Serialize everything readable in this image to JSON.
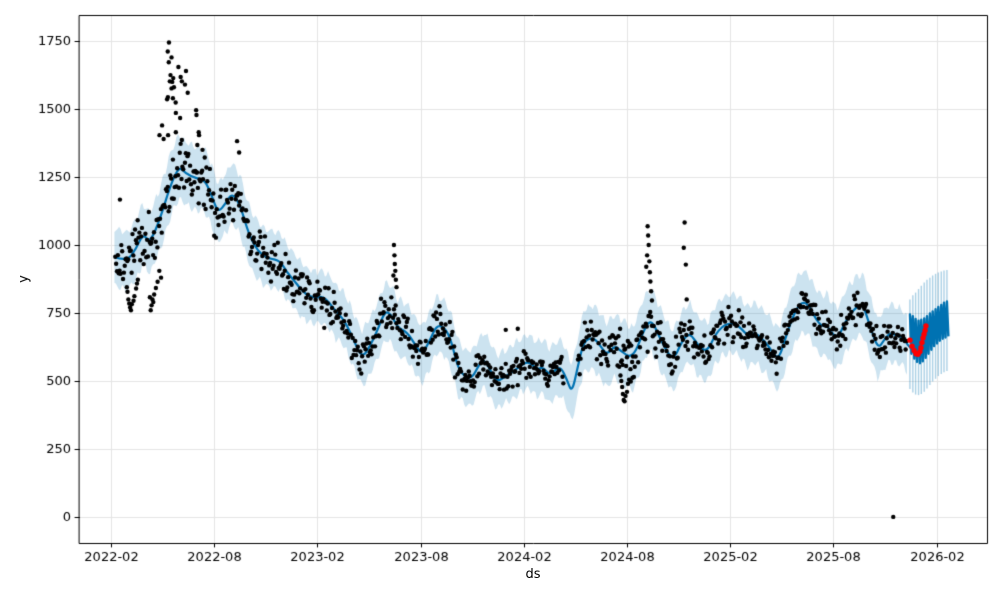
{
  "chart_data": {
    "type": "line",
    "components": [
      "scatter-actuals",
      "forecast-line",
      "uncertainty-band",
      "future-interval-whiskers",
      "recent-actuals-red"
    ],
    "title": "",
    "xlabel": "ds",
    "ylabel": "y",
    "grid": true,
    "legend": "none",
    "x_ticks": [
      {
        "label": "2022-02",
        "month": 0
      },
      {
        "label": "2022-08",
        "month": 6
      },
      {
        "label": "2023-02",
        "month": 12
      },
      {
        "label": "2023-08",
        "month": 18
      },
      {
        "label": "2024-02",
        "month": 24
      },
      {
        "label": "2024-08",
        "month": 30
      },
      {
        "label": "2025-02",
        "month": 36
      },
      {
        "label": "2025-08",
        "month": 42
      },
      {
        "label": "2026-02",
        "month": 48
      }
    ],
    "y_ticks": [
      0,
      250,
      500,
      750,
      1000,
      1250,
      1500,
      1750
    ],
    "x_range_months": [
      -1.86,
      50.93
    ],
    "y_range": [
      -96,
      1846
    ],
    "colors": {
      "line": "#0072b2",
      "band": "rgba(0,114,178,0.2)",
      "whisker": "rgba(0,114,178,0.33)",
      "dots": "#000000",
      "recent_dots": "#ff0000",
      "grid": "#e5e5e5",
      "spine": "#000000",
      "text": "#000000"
    },
    "seed": 7,
    "trend": [
      [
        0.23,
        955
      ],
      [
        0.93,
        940
      ],
      [
        1.45,
        985
      ],
      [
        1.86,
        1042
      ],
      [
        2.27,
        1008
      ],
      [
        2.85,
        1095
      ],
      [
        3.43,
        1215
      ],
      [
        3.95,
        1290
      ],
      [
        4.36,
        1262
      ],
      [
        4.94,
        1246
      ],
      [
        5.47,
        1238
      ],
      [
        5.87,
        1180
      ],
      [
        6.22,
        1118
      ],
      [
        6.69,
        1155
      ],
      [
        7.03,
        1192
      ],
      [
        7.5,
        1150
      ],
      [
        7.91,
        1060
      ],
      [
        8.31,
        1000
      ],
      [
        8.78,
        962
      ],
      [
        9.24,
        950
      ],
      [
        9.83,
        942
      ],
      [
        10.23,
        900
      ],
      [
        10.7,
        865
      ],
      [
        11.16,
        828
      ],
      [
        11.57,
        810
      ],
      [
        11.98,
        806
      ],
      [
        12.27,
        812
      ],
      [
        12.67,
        790
      ],
      [
        13.08,
        755
      ],
      [
        13.55,
        725
      ],
      [
        14.01,
        665
      ],
      [
        14.59,
        582
      ],
      [
        15.06,
        628
      ],
      [
        15.52,
        690
      ],
      [
        15.93,
        757
      ],
      [
        16.28,
        745
      ],
      [
        16.69,
        695
      ],
      [
        17.21,
        680
      ],
      [
        17.67,
        635
      ],
      [
        18.08,
        596
      ],
      [
        18.55,
        650
      ],
      [
        18.94,
        706
      ],
      [
        19.42,
        695
      ],
      [
        19.77,
        651
      ],
      [
        20.17,
        548
      ],
      [
        20.58,
        515
      ],
      [
        20.99,
        510
      ],
      [
        21.4,
        560
      ],
      [
        21.69,
        580
      ],
      [
        22.09,
        535
      ],
      [
        22.44,
        498
      ],
      [
        22.91,
        515
      ],
      [
        23.37,
        535
      ],
      [
        23.9,
        560
      ],
      [
        24.3,
        572
      ],
      [
        24.77,
        542
      ],
      [
        25.12,
        552
      ],
      [
        25.47,
        522
      ],
      [
        25.93,
        545
      ],
      [
        26.16,
        550
      ],
      [
        26.51,
        505
      ],
      [
        26.8,
        455
      ],
      [
        27.15,
        555
      ],
      [
        27.5,
        650
      ],
      [
        28.08,
        660
      ],
      [
        28.49,
        625
      ],
      [
        28.84,
        596
      ],
      [
        29.3,
        630
      ],
      [
        29.59,
        612
      ],
      [
        30.35,
        580
      ],
      [
        31.05,
        700
      ],
      [
        31.45,
        725
      ],
      [
        31.92,
        655
      ],
      [
        32.67,
        570
      ],
      [
        33.2,
        648
      ],
      [
        33.66,
        678
      ],
      [
        34.13,
        630
      ],
      [
        34.65,
        606
      ],
      [
        35.12,
        668
      ],
      [
        35.52,
        700
      ],
      [
        35.87,
        710
      ],
      [
        36.28,
        712
      ],
      [
        36.69,
        690
      ],
      [
        37.04,
        664
      ],
      [
        37.44,
        678
      ],
      [
        37.85,
        655
      ],
      [
        38.2,
        632
      ],
      [
        38.55,
        595
      ],
      [
        38.84,
        585
      ],
      [
        39.13,
        640
      ],
      [
        39.48,
        710
      ],
      [
        39.88,
        768
      ],
      [
        40.17,
        790
      ],
      [
        40.52,
        783
      ],
      [
        40.87,
        740
      ],
      [
        41.16,
        712
      ],
      [
        41.4,
        700
      ],
      [
        41.57,
        712
      ],
      [
        41.86,
        678
      ],
      [
        42.27,
        658
      ],
      [
        42.67,
        715
      ],
      [
        43.08,
        755
      ],
      [
        43.43,
        775
      ],
      [
        43.72,
        782
      ],
      [
        44.13,
        700
      ],
      [
        44.59,
        618
      ],
      [
        44.94,
        650
      ],
      [
        45.29,
        678
      ],
      [
        45.64,
        668
      ],
      [
        46.05,
        660
      ],
      [
        46.34,
        630
      ],
      [
        46.63,
        612
      ]
    ],
    "band_delta": [
      [
        0.2,
        105
      ],
      [
        4,
        116
      ],
      [
        8,
        106
      ],
      [
        12,
        96
      ],
      [
        16,
        104
      ],
      [
        20,
        102
      ],
      [
        24,
        96
      ],
      [
        27,
        105
      ],
      [
        28,
        118
      ],
      [
        31.5,
        114
      ],
      [
        35,
        105
      ],
      [
        38,
        112
      ],
      [
        40,
        112
      ],
      [
        43.5,
        112
      ],
      [
        46.3,
        100
      ]
    ],
    "band_wiggle": {
      "amp": 12,
      "period": 0.42,
      "jitter": 6,
      "step": 0.09,
      "t_start": 0.2,
      "t_end": 46.3
    },
    "scatter": {
      "t_start": 0.25,
      "t_end": 46.28,
      "step": 0.05,
      "dot_radius": 2.2,
      "noise_segments": [
        [
          0,
          3,
          46
        ],
        [
          3,
          6,
          58
        ],
        [
          6,
          9.5,
          50
        ],
        [
          9.5,
          13,
          40
        ],
        [
          13,
          18,
          36
        ],
        [
          18,
          26,
          28
        ],
        [
          26,
          29,
          32
        ],
        [
          29,
          34,
          36
        ],
        [
          34,
          40,
          30
        ],
        [
          40,
          46.3,
          27
        ]
      ],
      "gaps": [
        [
          26.32,
          27.12
        ]
      ]
    },
    "outliers": [
      [
        3.37,
        1745
      ],
      [
        3.3,
        1712
      ],
      [
        3.52,
        1690
      ],
      [
        3.36,
        1672
      ],
      [
        3.92,
        1655
      ],
      [
        3.46,
        1625
      ],
      [
        3.62,
        1614
      ],
      [
        3.56,
        1600
      ],
      [
        3.42,
        1602
      ],
      [
        3.66,
        1580
      ],
      [
        3.52,
        1576
      ],
      [
        4.05,
        1618
      ],
      [
        4.12,
        1602
      ],
      [
        3.31,
        1544
      ],
      [
        3.6,
        1540
      ],
      [
        3.76,
        1524
      ],
      [
        3.26,
        1536
      ],
      [
        4.02,
        1467
      ],
      [
        3.77,
        1486
      ],
      [
        3.32,
        1404
      ],
      [
        3.77,
        1415
      ],
      [
        4.12,
        1386
      ],
      [
        4.3,
        1590
      ],
      [
        4.36,
        1640
      ],
      [
        4.46,
        1560
      ],
      [
        4.95,
        1496
      ],
      [
        4.97,
        1478
      ],
      [
        5.1,
        1415
      ],
      [
        5.02,
        1368
      ],
      [
        2.97,
        1440
      ],
      [
        2.82,
        1404
      ],
      [
        5.12,
        1404
      ],
      [
        3.06,
        1390
      ],
      [
        5.32,
        1350
      ],
      [
        7.33,
        1382
      ],
      [
        7.45,
        1340
      ],
      [
        16.42,
        888
      ],
      [
        16.45,
        1000
      ],
      [
        16.48,
        962
      ],
      [
        16.5,
        930
      ],
      [
        16.53,
        905
      ],
      [
        16.56,
        872
      ],
      [
        16.6,
        845
      ],
      [
        31.12,
        920
      ],
      [
        31.17,
        962
      ],
      [
        31.2,
        1069
      ],
      [
        31.23,
        1035
      ],
      [
        31.26,
        1000
      ],
      [
        31.3,
        940
      ],
      [
        31.33,
        900
      ],
      [
        31.36,
        866
      ],
      [
        31.4,
        830
      ],
      [
        31.45,
        796
      ],
      [
        33.3,
        990
      ],
      [
        33.35,
        1083
      ],
      [
        33.42,
        928
      ],
      [
        33.47,
        800
      ],
      [
        29.62,
        520
      ],
      [
        29.67,
        500
      ],
      [
        29.72,
        478
      ],
      [
        29.76,
        452
      ],
      [
        29.81,
        430
      ],
      [
        29.86,
        425
      ],
      [
        29.91,
        445
      ],
      [
        30.0,
        460
      ],
      [
        30.06,
        490
      ],
      [
        30.12,
        505
      ],
      [
        30.22,
        498
      ],
      [
        30.32,
        512
      ],
      [
        0.92,
        845
      ],
      [
        0.96,
        828
      ],
      [
        1.01,
        800
      ],
      [
        1.06,
        785
      ],
      [
        1.11,
        770
      ],
      [
        1.16,
        760
      ],
      [
        1.21,
        782
      ],
      [
        1.31,
        795
      ],
      [
        1.36,
        812
      ],
      [
        1.46,
        840
      ],
      [
        1.51,
        858
      ],
      [
        1.56,
        872
      ],
      [
        2.26,
        808
      ],
      [
        2.31,
        760
      ],
      [
        2.36,
        778
      ],
      [
        2.41,
        800
      ],
      [
        2.46,
        790
      ],
      [
        2.51,
        818
      ],
      [
        2.61,
        842
      ],
      [
        2.71,
        865
      ],
      [
        2.81,
        905
      ],
      [
        2.91,
        880
      ],
      [
        0.52,
        1167
      ],
      [
        45.48,
        0
      ],
      [
        23.65,
        692
      ],
      [
        22.95,
        688
      ]
    ],
    "recent_actuals": [
      [
        46.45,
        650
      ],
      [
        46.57,
        628
      ],
      [
        46.69,
        612
      ],
      [
        46.8,
        600
      ],
      [
        46.92,
        598
      ],
      [
        47.03,
        608
      ],
      [
        47.09,
        622
      ],
      [
        47.15,
        641
      ],
      [
        47.21,
        658
      ],
      [
        47.27,
        672
      ],
      [
        47.33,
        686
      ],
      [
        47.38,
        702
      ]
    ],
    "forecast_whiskers": [
      [
        46.45,
        470,
        800,
        600,
        745
      ],
      [
        46.62,
        458,
        815,
        582,
        738
      ],
      [
        46.78,
        450,
        825,
        570,
        728
      ],
      [
        46.95,
        448,
        838,
        565,
        722
      ],
      [
        47.11,
        452,
        850,
        572,
        725
      ],
      [
        47.28,
        460,
        862,
        585,
        730
      ],
      [
        47.44,
        472,
        872,
        600,
        738
      ],
      [
        47.61,
        485,
        880,
        615,
        748
      ],
      [
        47.77,
        498,
        888,
        628,
        756
      ],
      [
        47.94,
        508,
        894,
        638,
        764
      ],
      [
        48.1,
        518,
        899,
        648,
        772
      ],
      [
        48.27,
        526,
        903,
        655,
        780
      ],
      [
        48.43,
        532,
        906,
        660,
        788
      ],
      [
        48.6,
        537,
        908,
        664,
        792
      ]
    ]
  }
}
